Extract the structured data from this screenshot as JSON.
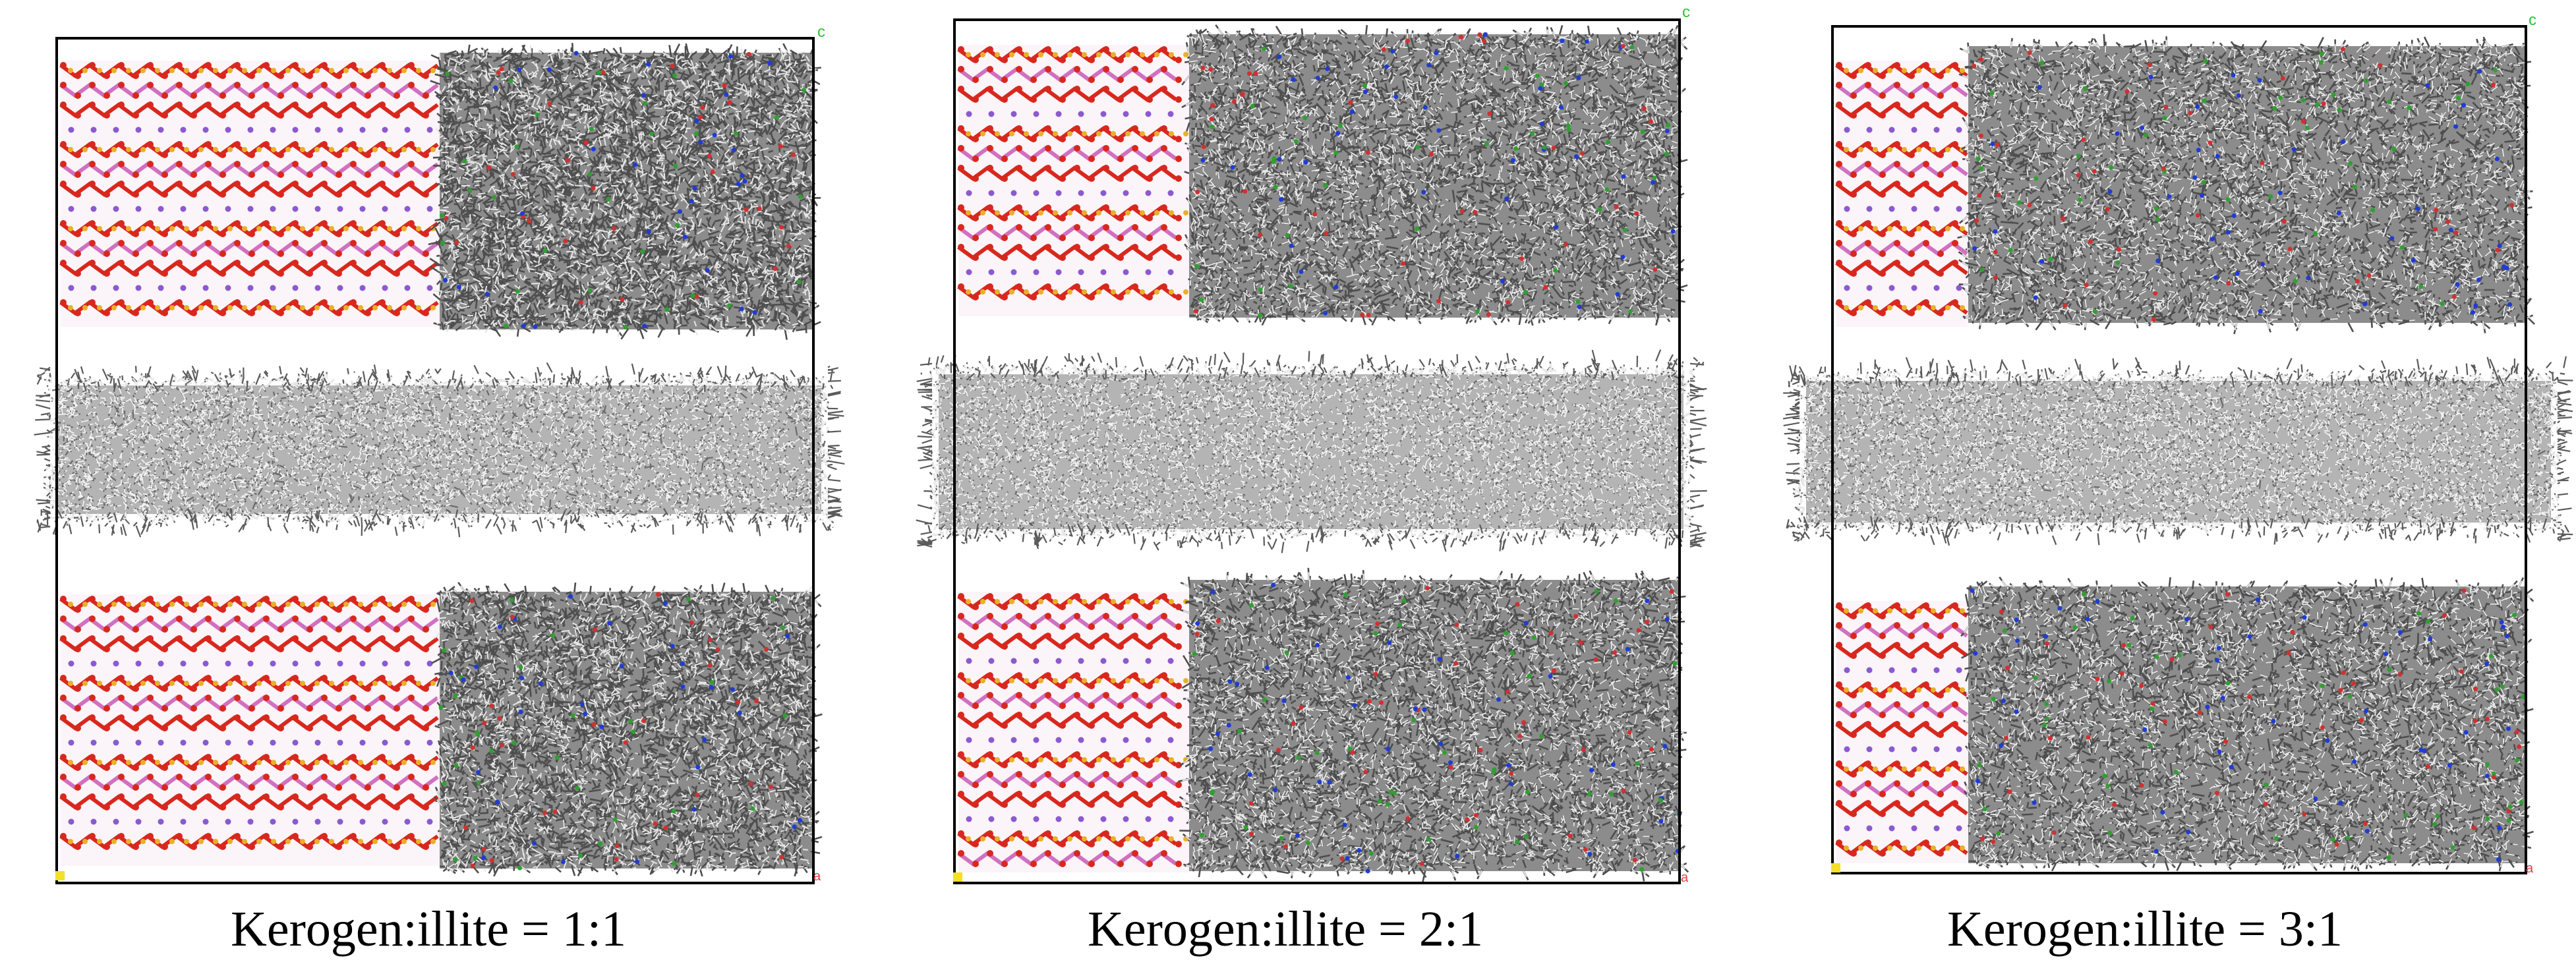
{
  "panels": [
    {
      "id": "p1",
      "caption": "Kerogen:illite = 1:1",
      "axis_c": "c",
      "axis_a": "a",
      "ratio": 1
    },
    {
      "id": "p2",
      "caption": "Kerogen:illite = 2:1",
      "axis_c": "c",
      "axis_a": "a",
      "ratio": 2
    },
    {
      "id": "p3",
      "caption": "Kerogen:illite = 3:1",
      "axis_c": "c",
      "axis_a": "a",
      "ratio": 3
    }
  ],
  "colors": {
    "illite_oxygen": "#d8281e",
    "illite_silicon": "#e9b02a",
    "illite_aluminum": "#d070c0",
    "potassium": "#8a5ad0",
    "kerogen": "#6a6a6a",
    "kerogen_light": "#c9c9c9",
    "oil": "#8d8d8d",
    "nitrogen": "#1f3cd6",
    "oxygen_atom": "#d23030",
    "sulfur": "#2fa02f",
    "axis_c": "#2ec22e",
    "axis_a": "#e04040",
    "origin": "#f2e02a",
    "frame": "#000000"
  }
}
